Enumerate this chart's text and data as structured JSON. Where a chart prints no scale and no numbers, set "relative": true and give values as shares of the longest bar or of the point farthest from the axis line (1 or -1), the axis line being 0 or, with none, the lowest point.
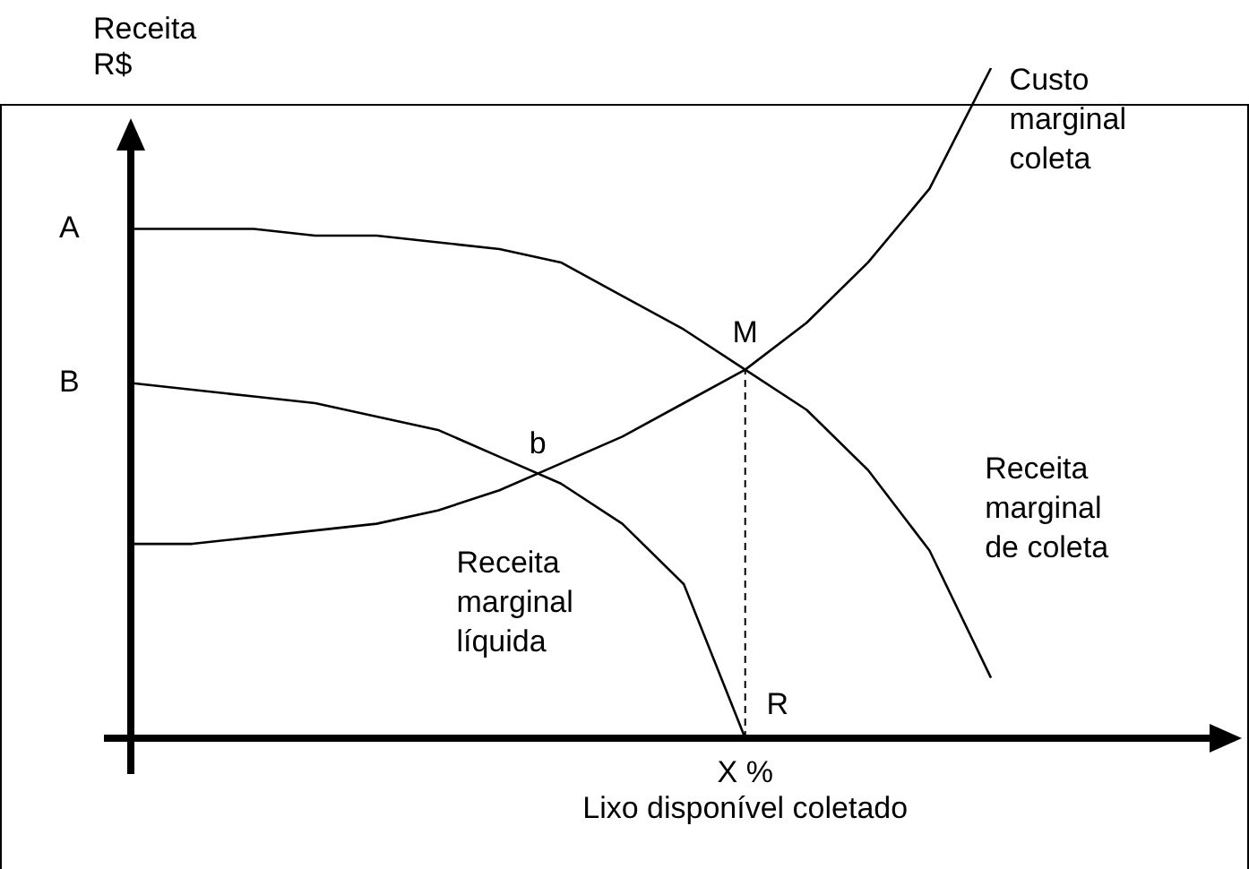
{
  "chart_data": {
    "type": "line",
    "relative": true,
    "xlabel": "Lixo disponível coletado",
    "ylabel": "Receita R$",
    "line_style": "solid",
    "categories": [
      null,
      null,
      null,
      null,
      null,
      null,
      null,
      null,
      null,
      null,
      null,
      null,
      null,
      null,
      null
    ],
    "series": [
      {
        "name": "Receita marginal de coleta",
        "color": "#000000",
        "values": [
          0.76,
          0.76,
          0.76,
          0.75,
          0.75,
          0.74,
          0.73,
          0.71,
          0.66,
          0.61,
          0.55,
          0.49,
          0.4,
          0.28,
          0.09
        ]
      },
      {
        "name": "Receita marginal líquida",
        "color": "#000000",
        "values": [
          0.53,
          0.52,
          0.51,
          0.5,
          0.48,
          0.46,
          0.42,
          0.38,
          0.32,
          0.23,
          0,
          null,
          null,
          null,
          null
        ]
      },
      {
        "name": "Custo marginal coleta",
        "color": "#000000",
        "values": [
          0.29,
          0.29,
          0.3,
          0.31,
          0.32,
          0.34,
          0.37,
          0.41,
          0.45,
          0.5,
          0.55,
          0.62,
          0.71,
          0.82,
          1
        ]
      }
    ],
    "ref_lines": [
      {
        "axis": "x",
        "line_style": "dashed",
        "color": "#000000"
      }
    ],
    "annotations": [
      "A",
      "B",
      "M",
      "b",
      "R",
      "X %"
    ]
  }
}
